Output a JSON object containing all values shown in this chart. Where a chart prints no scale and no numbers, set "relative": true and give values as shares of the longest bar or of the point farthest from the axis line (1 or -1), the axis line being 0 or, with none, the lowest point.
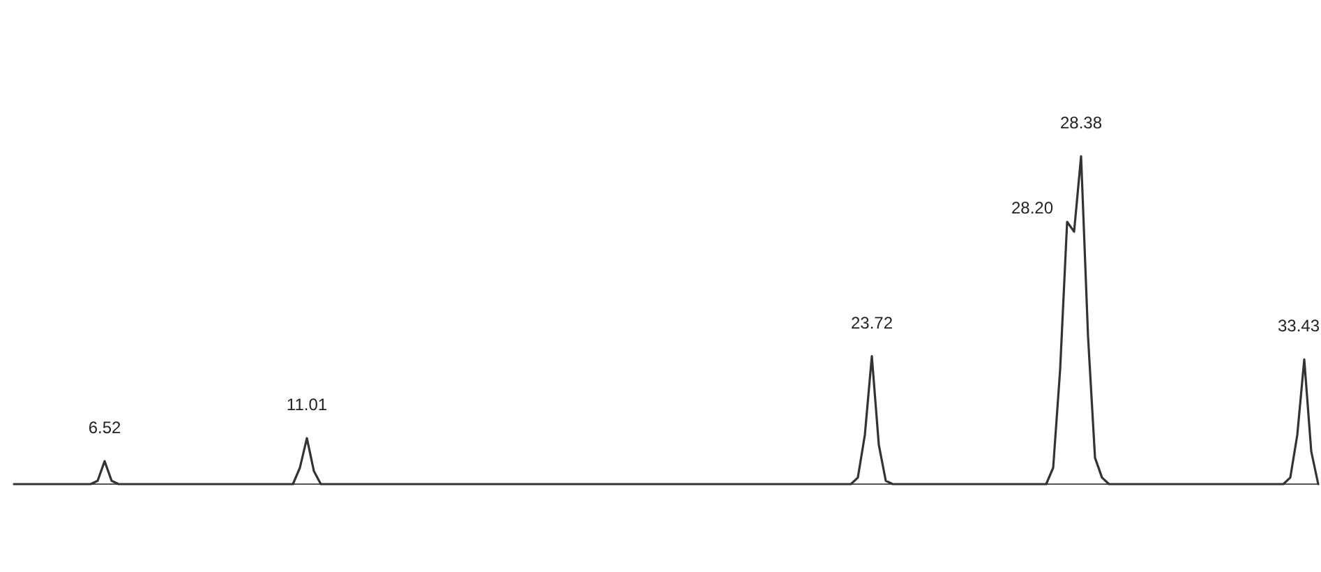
{
  "chart_data": {
    "type": "line",
    "relative": true,
    "marker": "none",
    "line_style": "solid",
    "categories": [
      null,
      null,
      null,
      null,
      null,
      null,
      null,
      null,
      null,
      null,
      null,
      null,
      null,
      null,
      null,
      null,
      null,
      null,
      null,
      null,
      null,
      null,
      null,
      null,
      null,
      null,
      null,
      null,
      null,
      null,
      null,
      null,
      null,
      null,
      null,
      null,
      null,
      null,
      null,
      null,
      null,
      null,
      null,
      null,
      null,
      null,
      null,
      null,
      null,
      null,
      null,
      null,
      null,
      null,
      null,
      null,
      null,
      null,
      null,
      null,
      null,
      null,
      null,
      null,
      null,
      null,
      null,
      null,
      null,
      null,
      null,
      null,
      null,
      null,
      null,
      null,
      null,
      null,
      null,
      null,
      null,
      null,
      null,
      null,
      null,
      null,
      null,
      null,
      null,
      null,
      null,
      null,
      null,
      null,
      null,
      null,
      null,
      null,
      null,
      null,
      null,
      null,
      null,
      null,
      null,
      null,
      null,
      null,
      null,
      null,
      null,
      null,
      null,
      null,
      null,
      null,
      null,
      null,
      null,
      null,
      null,
      null,
      null,
      null,
      null,
      null,
      null,
      null,
      null,
      null,
      null,
      null,
      null,
      null,
      null,
      null,
      null,
      null,
      null,
      null,
      null,
      null,
      null,
      null,
      null,
      null,
      null,
      null,
      null,
      null,
      null,
      null,
      null,
      null,
      null,
      null,
      null,
      null,
      null,
      null,
      null,
      null,
      null,
      null,
      null,
      null,
      null,
      null,
      null,
      null,
      null,
      null,
      null,
      null,
      null,
      null,
      null,
      null,
      null,
      null,
      null,
      null,
      null,
      null,
      null,
      null,
      null,
      null
    ],
    "series": [
      {
        "color": "#333333",
        "values": [
          0,
          0,
          0,
          0,
          0,
          0,
          0,
          0,
          0,
          0,
          0,
          0,
          0.01,
          0.07,
          0.01,
          0,
          0,
          0,
          0,
          0,
          0,
          0,
          0,
          0,
          0,
          0,
          0,
          0,
          0,
          0,
          0,
          0,
          0,
          0,
          0,
          0,
          0,
          0,
          0,
          0,
          0,
          0.05,
          0.14,
          0.04,
          0,
          0,
          0,
          0,
          0,
          0,
          0,
          0,
          0,
          0,
          0,
          0,
          0,
          0,
          0,
          0,
          0,
          0,
          0,
          0,
          0,
          0,
          0,
          0,
          0,
          0,
          0,
          0,
          0,
          0,
          0,
          0,
          0,
          0,
          0,
          0,
          0,
          0,
          0,
          0,
          0,
          0,
          0,
          0,
          0,
          0,
          0,
          0,
          0,
          0,
          0,
          0,
          0,
          0,
          0,
          0,
          0,
          0,
          0,
          0,
          0,
          0,
          0,
          0,
          0,
          0,
          0,
          0,
          0,
          0,
          0,
          0,
          0,
          0,
          0,
          0,
          0,
          0.02,
          0.15,
          0.39,
          0.12,
          0.01,
          0,
          0,
          0,
          0,
          0,
          0,
          0,
          0,
          0,
          0,
          0,
          0,
          0,
          0,
          0,
          0,
          0,
          0,
          0,
          0,
          0,
          0,
          0,
          0.05,
          0.35,
          0.8,
          0.77,
          1.0,
          0.45,
          0.08,
          0.02,
          0,
          0,
          0,
          0,
          0,
          0,
          0,
          0,
          0,
          0,
          0,
          0,
          0,
          0,
          0,
          0,
          0,
          0,
          0,
          0,
          0,
          0,
          0,
          0,
          0,
          0,
          0.02,
          0.15,
          0.38,
          0.1,
          0
        ]
      }
    ],
    "annotations": [
      "6.52",
      "11.01",
      "23.72",
      "28.20",
      "28.38",
      "33.43"
    ]
  }
}
